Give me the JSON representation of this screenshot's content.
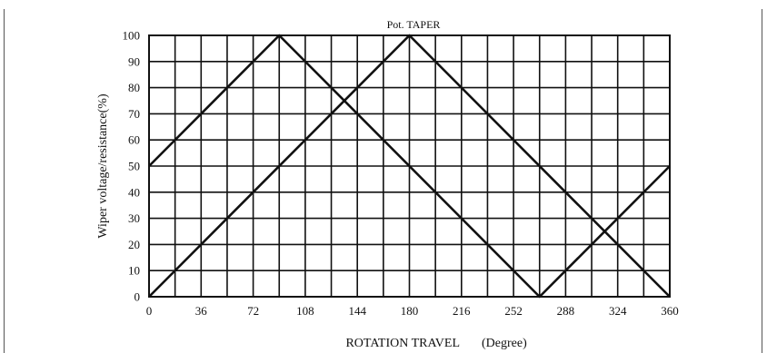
{
  "chart_data": {
    "type": "line",
    "title": "Pot. TAPER",
    "xlabel": "ROTATION TRAVEL",
    "xlabel_unit": "(Degree)",
    "ylabel": "Wiper voltage/resistance(%)",
    "xlim": [
      0,
      360
    ],
    "ylim": [
      0,
      100
    ],
    "x_ticks": [
      0,
      36,
      72,
      108,
      144,
      180,
      216,
      252,
      288,
      324,
      360
    ],
    "y_ticks": [
      0,
      10,
      20,
      30,
      40,
      50,
      60,
      70,
      80,
      90,
      100
    ],
    "x_minor_step": 18,
    "grid": true,
    "colors": {
      "line": "#111111",
      "grid": "#111111",
      "frame": "#555555"
    },
    "series": [
      {
        "x": [
          0,
          90,
          270,
          360
        ],
        "y": [
          50,
          100,
          0,
          50
        ]
      },
      {
        "x": [
          0,
          180,
          360
        ],
        "y": [
          0,
          100,
          0
        ]
      }
    ]
  }
}
